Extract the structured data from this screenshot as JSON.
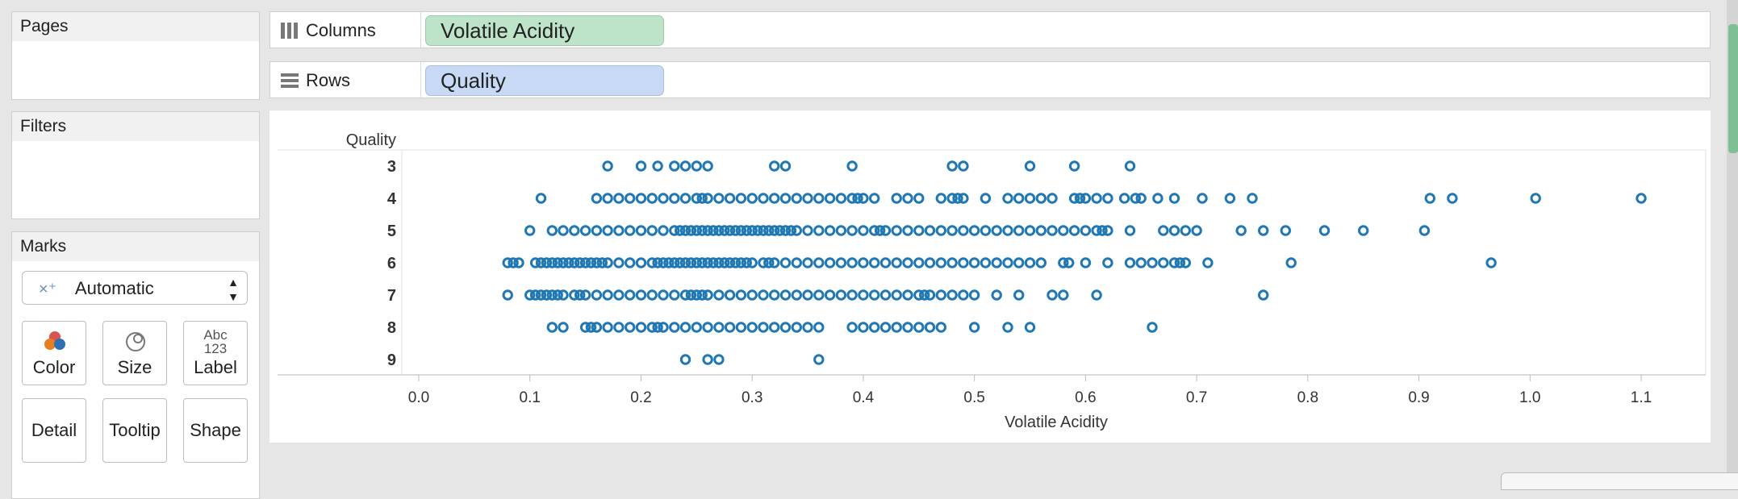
{
  "sidebar": {
    "pages_title": "Pages",
    "filters_title": "Filters",
    "marks": {
      "title": "Marks",
      "mark_type": "Automatic",
      "buttons": [
        "Color",
        "Size",
        "Label",
        "Detail",
        "Tooltip",
        "Shape"
      ],
      "label_icon_text": "Abc",
      "label_icon_num": "123"
    }
  },
  "shelves": {
    "columns_label": "Columns",
    "columns_pill": "Volatile Acidity",
    "rows_label": "Rows",
    "rows_pill": "Quality"
  },
  "colors": {
    "mark": "#1f77b4",
    "columns_pill": "#bde3c9",
    "rows_pill": "#c7d9f4"
  },
  "chart_data": {
    "type": "scatter",
    "xlabel": "Volatile Acidity",
    "ylabel": "Quality",
    "categories": [
      "3",
      "4",
      "5",
      "6",
      "7",
      "8",
      "9"
    ],
    "xlim": [
      0.0,
      1.1
    ],
    "xticks": [
      "0.0",
      "0.1",
      "0.2",
      "0.3",
      "0.4",
      "0.5",
      "0.6",
      "0.7",
      "0.8",
      "0.9",
      "1.0",
      "1.1"
    ],
    "grid": false,
    "series": [
      {
        "category": "3",
        "x": [
          0.17,
          0.2,
          0.215,
          0.23,
          0.24,
          0.25,
          0.26,
          0.32,
          0.33,
          0.39,
          0.48,
          0.49,
          0.55,
          0.59,
          0.64
        ]
      },
      {
        "category": "4",
        "x": [
          0.11,
          0.16,
          0.17,
          0.18,
          0.19,
          0.2,
          0.21,
          0.22,
          0.23,
          0.24,
          0.25,
          0.255,
          0.26,
          0.27,
          0.28,
          0.29,
          0.3,
          0.31,
          0.32,
          0.33,
          0.34,
          0.35,
          0.36,
          0.37,
          0.38,
          0.39,
          0.395,
          0.4,
          0.41,
          0.43,
          0.44,
          0.45,
          0.47,
          0.48,
          0.485,
          0.49,
          0.51,
          0.53,
          0.54,
          0.55,
          0.56,
          0.57,
          0.59,
          0.595,
          0.6,
          0.61,
          0.62,
          0.635,
          0.645,
          0.65,
          0.665,
          0.68,
          0.705,
          0.73,
          0.75,
          0.91,
          0.93,
          1.005,
          1.1
        ]
      },
      {
        "category": "5",
        "x": [
          0.1,
          0.12,
          0.13,
          0.14,
          0.15,
          0.16,
          0.17,
          0.18,
          0.19,
          0.2,
          0.21,
          0.22,
          0.23,
          0.235,
          0.24,
          0.245,
          0.25,
          0.255,
          0.26,
          0.265,
          0.27,
          0.275,
          0.28,
          0.285,
          0.29,
          0.295,
          0.3,
          0.305,
          0.31,
          0.315,
          0.32,
          0.325,
          0.33,
          0.335,
          0.34,
          0.35,
          0.36,
          0.37,
          0.38,
          0.39,
          0.4,
          0.41,
          0.415,
          0.42,
          0.43,
          0.44,
          0.45,
          0.46,
          0.47,
          0.48,
          0.49,
          0.5,
          0.51,
          0.52,
          0.53,
          0.54,
          0.55,
          0.56,
          0.57,
          0.58,
          0.59,
          0.6,
          0.61,
          0.615,
          0.62,
          0.64,
          0.67,
          0.68,
          0.69,
          0.7,
          0.74,
          0.76,
          0.78,
          0.815,
          0.85,
          0.905
        ]
      },
      {
        "category": "6",
        "x": [
          0.08,
          0.085,
          0.09,
          0.105,
          0.11,
          0.115,
          0.12,
          0.125,
          0.13,
          0.135,
          0.14,
          0.145,
          0.15,
          0.155,
          0.16,
          0.165,
          0.17,
          0.18,
          0.19,
          0.2,
          0.21,
          0.215,
          0.22,
          0.225,
          0.23,
          0.235,
          0.24,
          0.245,
          0.25,
          0.255,
          0.26,
          0.265,
          0.27,
          0.275,
          0.28,
          0.285,
          0.29,
          0.295,
          0.3,
          0.31,
          0.315,
          0.32,
          0.33,
          0.34,
          0.35,
          0.36,
          0.37,
          0.38,
          0.39,
          0.4,
          0.41,
          0.42,
          0.43,
          0.44,
          0.45,
          0.46,
          0.47,
          0.48,
          0.49,
          0.5,
          0.51,
          0.52,
          0.53,
          0.54,
          0.55,
          0.56,
          0.58,
          0.585,
          0.6,
          0.62,
          0.64,
          0.65,
          0.66,
          0.67,
          0.68,
          0.685,
          0.69,
          0.71,
          0.785,
          0.965
        ]
      },
      {
        "category": "7",
        "x": [
          0.08,
          0.1,
          0.105,
          0.11,
          0.115,
          0.12,
          0.125,
          0.13,
          0.14,
          0.145,
          0.15,
          0.16,
          0.17,
          0.18,
          0.19,
          0.2,
          0.21,
          0.22,
          0.23,
          0.24,
          0.245,
          0.25,
          0.255,
          0.26,
          0.27,
          0.28,
          0.29,
          0.3,
          0.31,
          0.32,
          0.33,
          0.34,
          0.35,
          0.36,
          0.37,
          0.38,
          0.39,
          0.4,
          0.41,
          0.42,
          0.43,
          0.44,
          0.45,
          0.455,
          0.46,
          0.47,
          0.48,
          0.49,
          0.5,
          0.52,
          0.54,
          0.57,
          0.58,
          0.61,
          0.76
        ]
      },
      {
        "category": "8",
        "x": [
          0.12,
          0.13,
          0.15,
          0.155,
          0.16,
          0.17,
          0.18,
          0.19,
          0.2,
          0.21,
          0.215,
          0.22,
          0.23,
          0.24,
          0.25,
          0.26,
          0.27,
          0.28,
          0.29,
          0.3,
          0.31,
          0.32,
          0.33,
          0.34,
          0.35,
          0.36,
          0.39,
          0.4,
          0.41,
          0.42,
          0.43,
          0.44,
          0.45,
          0.46,
          0.47,
          0.5,
          0.53,
          0.55,
          0.66
        ]
      },
      {
        "category": "9",
        "x": [
          0.24,
          0.26,
          0.27,
          0.36
        ]
      }
    ]
  }
}
